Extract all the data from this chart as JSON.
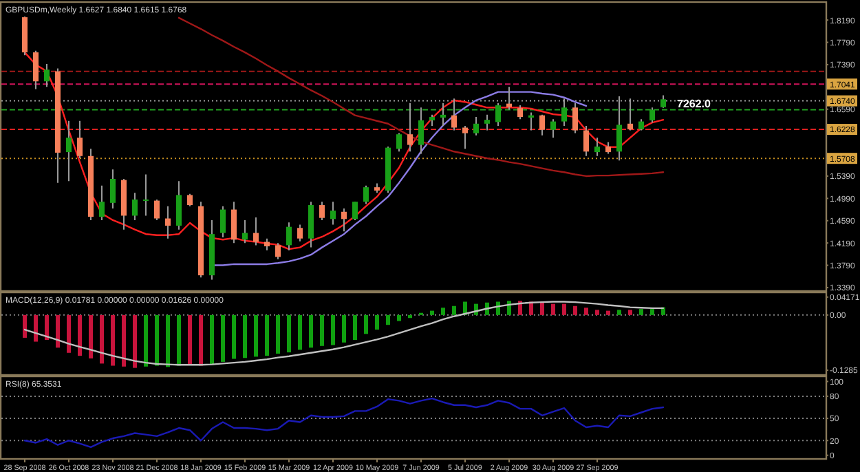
{
  "chart_data": [
    {
      "type": "candlestick",
      "title": "GBPUSDm,Weekly  1.6627 1.6840 1.6615 1.6768",
      "categories": [
        null,
        null,
        null,
        null,
        null,
        null,
        null,
        null,
        null,
        null,
        null,
        null,
        null,
        null,
        null,
        null,
        null,
        null,
        null,
        null,
        null,
        null,
        null,
        null,
        null,
        null,
        null,
        null,
        null,
        null,
        null,
        null,
        null,
        null,
        null,
        null,
        null,
        null,
        null,
        null,
        null,
        null,
        null,
        null,
        null,
        null,
        null,
        null,
        null,
        null,
        null,
        null,
        null,
        null,
        null,
        null,
        null,
        null,
        null
      ],
      "ohlc": [
        [
          1.824,
          1.826,
          1.756,
          1.761
        ],
        [
          1.761,
          1.764,
          1.695,
          1.709
        ],
        [
          1.709,
          1.74,
          1.699,
          1.73
        ],
        [
          1.727,
          1.732,
          1.527,
          1.581
        ],
        [
          1.582,
          1.638,
          1.53,
          1.608
        ],
        [
          1.608,
          1.638,
          1.571,
          1.575
        ],
        [
          1.575,
          1.588,
          1.46,
          1.466
        ],
        [
          1.466,
          1.522,
          1.46,
          1.493
        ],
        [
          1.491,
          1.551,
          1.481,
          1.534
        ],
        [
          1.532,
          1.534,
          1.443,
          1.468
        ],
        [
          1.468,
          1.509,
          1.46,
          1.497
        ],
        [
          1.495,
          1.542,
          1.468,
          1.497
        ],
        [
          1.495,
          1.497,
          1.46,
          1.463
        ],
        [
          1.463,
          1.485,
          1.427,
          1.45
        ],
        [
          1.45,
          1.53,
          1.443,
          1.505
        ],
        [
          1.505,
          1.507,
          1.485,
          1.487
        ],
        [
          1.485,
          1.493,
          1.357,
          1.361
        ],
        [
          1.361,
          1.46,
          1.353,
          1.435
        ],
        [
          1.437,
          1.485,
          1.429,
          1.479
        ],
        [
          1.479,
          1.493,
          1.419,
          1.425
        ],
        [
          1.425,
          1.46,
          1.419,
          1.437
        ],
        [
          1.437,
          1.465,
          1.415,
          1.421
        ],
        [
          1.421,
          1.427,
          1.406,
          1.413
        ],
        [
          1.415,
          1.419,
          1.39,
          1.394
        ],
        [
          1.415,
          1.456,
          1.406,
          1.448
        ],
        [
          1.446,
          1.452,
          1.422,
          1.427
        ],
        [
          1.427,
          1.493,
          1.411,
          1.487
        ],
        [
          1.487,
          1.493,
          1.46,
          1.464
        ],
        [
          1.462,
          1.493,
          1.452,
          1.477
        ],
        [
          1.475,
          1.481,
          1.44,
          1.462
        ],
        [
          1.462,
          1.493,
          1.46,
          1.493
        ],
        [
          1.493,
          1.522,
          1.489,
          1.519
        ],
        [
          1.519,
          1.526,
          1.509,
          1.513
        ],
        [
          1.513,
          1.592,
          1.509,
          1.59
        ],
        [
          1.588,
          1.616,
          1.583,
          1.614
        ],
        [
          1.614,
          1.67,
          1.583,
          1.595
        ],
        [
          1.595,
          1.662,
          1.579,
          1.639
        ],
        [
          1.639,
          1.649,
          1.629,
          1.645
        ],
        [
          1.644,
          1.67,
          1.629,
          1.649
        ],
        [
          1.648,
          1.678,
          1.621,
          1.626
        ],
        [
          1.626,
          1.629,
          1.588,
          1.616
        ],
        [
          1.616,
          1.645,
          1.612,
          1.633
        ],
        [
          1.633,
          1.649,
          1.621,
          1.64
        ],
        [
          1.636,
          1.67,
          1.629,
          1.666
        ],
        [
          1.669,
          1.699,
          1.658,
          1.663
        ],
        [
          1.661,
          1.666,
          1.641,
          1.645
        ],
        [
          1.644,
          1.653,
          1.621,
          1.648
        ],
        [
          1.648,
          1.649,
          1.612,
          1.622
        ],
        [
          1.622,
          1.641,
          1.608,
          1.637
        ],
        [
          1.637,
          1.678,
          1.629,
          1.662
        ],
        [
          1.662,
          1.67,
          1.616,
          1.621
        ],
        [
          1.621,
          1.629,
          1.575,
          1.583
        ],
        [
          1.582,
          1.608,
          1.575,
          1.592
        ],
        [
          1.592,
          1.6,
          1.579,
          1.582
        ],
        [
          1.583,
          1.682,
          1.567,
          1.631
        ],
        [
          1.633,
          1.678,
          1.621,
          1.623
        ],
        [
          1.623,
          1.641,
          1.621,
          1.637
        ],
        [
          1.639,
          1.662,
          1.635,
          1.658
        ],
        [
          1.6627,
          1.684,
          1.6615,
          1.6768
        ]
      ],
      "series": [
        {
          "type": "line",
          "color": "#ff2020",
          "values": [
            1.761,
            1.739,
            1.727,
            1.682,
            1.621,
            1.564,
            1.509,
            1.472,
            1.46,
            1.452,
            1.443,
            1.435,
            1.433,
            1.433,
            1.435,
            1.455,
            1.44,
            1.428,
            1.425,
            1.428,
            1.423,
            1.421,
            1.418,
            1.416,
            1.408,
            1.411,
            1.423,
            1.43,
            1.44,
            1.452,
            1.467,
            1.485,
            1.502,
            1.527,
            1.554,
            1.591,
            1.62,
            1.643,
            1.662,
            1.675,
            1.672,
            1.667,
            1.662,
            1.662,
            1.662,
            1.662,
            1.66,
            1.655,
            1.65,
            1.648,
            1.645,
            1.621,
            1.601,
            1.591,
            1.591,
            1.608,
            1.625,
            1.635,
            1.64
          ]
        },
        {
          "type": "line",
          "color": "#8c7ce6",
          "values": [
            null,
            null,
            null,
            null,
            null,
            null,
            null,
            null,
            null,
            null,
            null,
            null,
            null,
            null,
            null,
            null,
            null,
            1.379,
            1.379,
            1.381,
            1.381,
            1.381,
            1.381,
            1.383,
            1.386,
            1.391,
            1.398,
            1.411,
            1.423,
            1.435,
            1.452,
            1.467,
            1.485,
            1.502,
            1.527,
            1.554,
            1.583,
            1.608,
            1.63,
            1.648,
            1.662,
            1.675,
            1.682,
            1.69,
            1.69,
            1.69,
            1.69,
            1.687,
            1.685,
            1.68,
            1.672,
            1.665,
            null,
            null,
            null,
            null,
            null,
            null,
            null
          ]
        },
        {
          "type": "line",
          "color": "#a01818",
          "values": [
            null,
            null,
            null,
            null,
            null,
            null,
            null,
            null,
            null,
            null,
            null,
            null,
            null,
            null,
            1.823,
            1.813,
            1.803,
            1.792,
            1.782,
            1.771,
            1.761,
            1.75,
            1.738,
            1.727,
            1.715,
            1.704,
            1.693,
            1.683,
            1.672,
            1.66,
            1.648,
            1.643,
            1.638,
            1.633,
            1.622,
            1.611,
            1.601,
            1.595,
            1.589,
            1.583,
            1.579,
            1.575,
            1.571,
            1.568,
            1.564,
            1.561,
            1.557,
            1.553,
            1.549,
            1.546,
            1.542,
            1.539,
            1.54,
            1.54,
            1.541,
            1.542,
            1.543,
            1.544,
            1.546
          ]
        }
      ],
      "ylim": [
        1.334,
        1.85
      ],
      "yticks": [
        {
          "value": 1.339,
          "label": "1.3390"
        },
        {
          "value": 1.379,
          "label": "1.3790"
        },
        {
          "value": 1.419,
          "label": "1.4190"
        },
        {
          "value": 1.459,
          "label": "1.4590"
        },
        {
          "value": 1.499,
          "label": "1.4990"
        },
        {
          "value": 1.539,
          "label": "1.5390"
        },
        {
          "value": 1.659,
          "label": "1.6590"
        },
        {
          "value": 1.739,
          "label": "1.7390"
        },
        {
          "value": 1.779,
          "label": "1.7790"
        },
        {
          "value": 1.819,
          "label": "1.8190"
        }
      ],
      "ref_lines": [
        {
          "axis": "y",
          "value": 1.727,
          "color": "#a01818",
          "line_style": "dashed"
        },
        {
          "axis": "y",
          "value": 1.7041,
          "label": "1.7041",
          "color": "#d0145a",
          "line_style": "dashed"
        },
        {
          "axis": "y",
          "value": 1.674,
          "label": "1.6740",
          "color": "#a0a0a0",
          "line_style": "dotted"
        },
        {
          "axis": "y",
          "value": 1.658,
          "color": "#20a020",
          "line_style": "dashed"
        },
        {
          "axis": "y",
          "value": 1.6228,
          "label": "1.6228",
          "color": "#e02020",
          "line_style": "dashed"
        },
        {
          "axis": "y",
          "value": 1.5708,
          "label": "1.5708",
          "color": "#c89020",
          "line_style": "dotted"
        }
      ],
      "annotations": [
        {
          "text": "7262.0",
          "y": 1.67
        }
      ],
      "tick_labels": "y"
    },
    {
      "type": "bar",
      "title": "MACD(12,26,9) 0.01781 0.00000 0.00000 0.01626 0.00000",
      "categories": [
        null,
        null,
        null,
        null,
        null,
        null,
        null,
        null,
        null,
        null,
        null,
        null,
        null,
        null,
        null,
        null,
        null,
        null,
        null,
        null,
        null,
        null,
        null,
        null,
        null,
        null,
        null,
        null,
        null,
        null,
        null,
        null,
        null,
        null,
        null,
        null,
        null,
        null,
        null,
        null,
        null,
        null,
        null,
        null,
        null,
        null,
        null,
        null,
        null,
        null,
        null,
        null,
        null,
        null,
        null,
        null,
        null,
        null,
        null
      ],
      "series": [
        {
          "type": "bar",
          "values": [
            -0.053,
            -0.062,
            -0.058,
            -0.076,
            -0.088,
            -0.095,
            -0.101,
            -0.113,
            -0.118,
            -0.12,
            -0.123,
            -0.12,
            -0.118,
            -0.121,
            -0.118,
            -0.116,
            -0.118,
            -0.116,
            -0.109,
            -0.102,
            -0.1,
            -0.097,
            -0.095,
            -0.09,
            -0.087,
            -0.081,
            -0.076,
            -0.072,
            -0.07,
            -0.064,
            -0.058,
            -0.044,
            -0.034,
            -0.023,
            -0.014,
            -0.007,
            0.005,
            0.01,
            0.017,
            0.021,
            0.031,
            0.026,
            0.029,
            0.031,
            0.033,
            0.033,
            0.031,
            0.029,
            0.026,
            0.026,
            0.021,
            0.017,
            0.012,
            0.01,
            0.012,
            0.012,
            0.014,
            0.014,
            0.018
          ],
          "colors": [
            "#c8143c",
            "#c8143c",
            "#c8143c",
            "#c8143c",
            "#c8143c",
            "#c8143c",
            "#c8143c",
            "#c8143c",
            "#c8143c",
            "#c8143c",
            "#c8143c",
            "#10a010",
            "#10a010",
            "#10a010",
            "#10a010",
            "#c8143c",
            "#c8143c",
            "#10a010",
            "#10a010",
            "#10a010",
            "#10a010",
            "#10a010",
            "#10a010",
            "#10a010",
            "#10a010",
            "#10a010",
            "#10a010",
            "#10a010",
            "#10a010",
            "#10a010",
            "#10a010",
            "#10a010",
            "#10a010",
            "#10a010",
            "#10a010",
            "#10a010",
            "#10a010",
            "#10a010",
            "#10a010",
            "#10a010",
            "#10a010",
            "#10a010",
            "#10a010",
            "#10a010",
            "#10a010",
            "#c8143c",
            "#c8143c",
            "#c8143c",
            "#c8143c",
            "#c8143c",
            "#c8143c",
            "#c8143c",
            "#c8143c",
            "#c8143c",
            "#10a010",
            "#c8143c",
            "#10a010",
            "#10a010",
            "#10a010"
          ]
        },
        {
          "type": "line",
          "color": "#c0c0c0",
          "values": [
            -0.034,
            -0.042,
            -0.05,
            -0.058,
            -0.067,
            -0.074,
            -0.081,
            -0.088,
            -0.095,
            -0.101,
            -0.107,
            -0.111,
            -0.114,
            -0.115,
            -0.116,
            -0.116,
            -0.116,
            -0.115,
            -0.113,
            -0.111,
            -0.109,
            -0.106,
            -0.103,
            -0.099,
            -0.096,
            -0.092,
            -0.088,
            -0.084,
            -0.08,
            -0.075,
            -0.069,
            -0.063,
            -0.057,
            -0.05,
            -0.042,
            -0.034,
            -0.026,
            -0.019,
            -0.01,
            -0.003,
            0.003,
            0.009,
            0.015,
            0.02,
            0.024,
            0.027,
            0.029,
            0.03,
            0.031,
            0.031,
            0.03,
            0.028,
            0.026,
            0.023,
            0.021,
            0.018,
            0.017,
            0.016,
            0.016
          ]
        }
      ],
      "ylim": [
        -0.138,
        0.051
      ],
      "yticks": [
        {
          "value": 0.04171,
          "label": "0.04171"
        },
        {
          "value": 0,
          "label": "0.00"
        },
        {
          "value": -0.1285,
          "label": "-0.1285"
        }
      ],
      "ref_lines": [
        {
          "axis": "y",
          "value": 0,
          "color": "#808080",
          "line_style": "dotted"
        }
      ],
      "tick_labels": "y"
    },
    {
      "type": "line",
      "title": "RSI(8) 65.3531",
      "categories": [
        "28 Sep 2008",
        null,
        null,
        null,
        "26 Oct 2008",
        null,
        null,
        null,
        "23 Nov 2008",
        null,
        null,
        null,
        "21 Dec 2008",
        null,
        null,
        null,
        "18 Jan 2009",
        null,
        null,
        null,
        "15 Feb 2009",
        null,
        null,
        null,
        "15 Mar 2009",
        null,
        null,
        null,
        "12 Apr 2009",
        null,
        null,
        null,
        "10 May 2009",
        null,
        null,
        null,
        "7 Jun 2009",
        null,
        null,
        null,
        "5 Jul 2009",
        null,
        null,
        null,
        "2 Aug 2009",
        null,
        null,
        null,
        "30 Aug 2009",
        null,
        null,
        null,
        "27 Sep 2009",
        null,
        null,
        null,
        null,
        null,
        null
      ],
      "series": [
        {
          "color": "#1a1ab4",
          "values": [
            20,
            17,
            22,
            14,
            20,
            16,
            11,
            18,
            23,
            26,
            30,
            28,
            26,
            31,
            37,
            34,
            20,
            36,
            45,
            37,
            37,
            36,
            34,
            36,
            47,
            45,
            54,
            52,
            52,
            53,
            60,
            60,
            66,
            76,
            74,
            70,
            74,
            77,
            72,
            68,
            68,
            65,
            68,
            74,
            71,
            63,
            63,
            54,
            59,
            64,
            47,
            38,
            40,
            38,
            54,
            53,
            58,
            63,
            65
          ]
        }
      ],
      "ylim": [
        -4,
        106
      ],
      "yticks": [
        0,
        20,
        50,
        80,
        100
      ],
      "ref_lines": [
        {
          "axis": "y",
          "value": 20,
          "color": "#808080",
          "line_style": "dotted"
        },
        {
          "axis": "y",
          "value": 50,
          "color": "#808080",
          "line_style": "dotted"
        },
        {
          "axis": "y",
          "value": 80,
          "color": "#808080",
          "line_style": "dotted"
        }
      ]
    }
  ]
}
